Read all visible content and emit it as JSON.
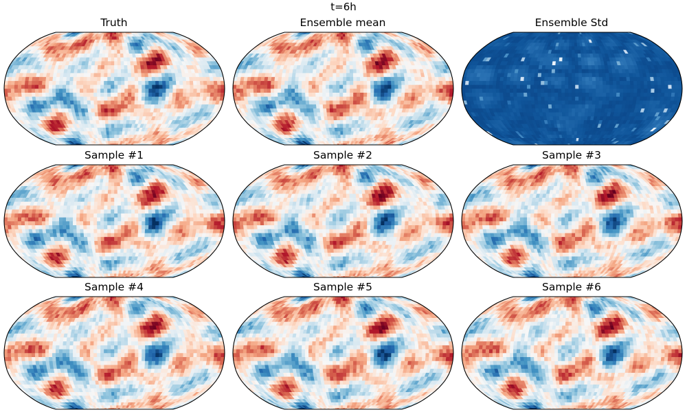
{
  "figure": {
    "suptitle": "t=6h"
  },
  "chart_data": [
    {
      "type": "heatmap",
      "title": "Truth",
      "colormap": "RdBu_r",
      "projection": "robinson",
      "field_seed": 11,
      "noise_seed": 101
    },
    {
      "type": "heatmap",
      "title": "Ensemble mean",
      "colormap": "RdBu_r",
      "projection": "robinson",
      "field_seed": 11,
      "noise_seed": 202
    },
    {
      "type": "heatmap",
      "title": "Ensemble Std",
      "colormap": "Blues",
      "projection": "robinson",
      "field_seed": 77,
      "noise_seed": 303
    },
    {
      "type": "heatmap",
      "title": "Sample #1",
      "colormap": "RdBu_r",
      "projection": "robinson",
      "field_seed": 11,
      "noise_seed": 404
    },
    {
      "type": "heatmap",
      "title": "Sample #2",
      "colormap": "RdBu_r",
      "projection": "robinson",
      "field_seed": 11,
      "noise_seed": 505
    },
    {
      "type": "heatmap",
      "title": "Sample #3",
      "colormap": "RdBu_r",
      "projection": "robinson",
      "field_seed": 11,
      "noise_seed": 606
    },
    {
      "type": "heatmap",
      "title": "Sample #4",
      "colormap": "RdBu_r",
      "projection": "robinson",
      "field_seed": 11,
      "noise_seed": 707
    },
    {
      "type": "heatmap",
      "title": "Sample #5",
      "colormap": "RdBu_r",
      "projection": "robinson",
      "field_seed": 11,
      "noise_seed": 808
    },
    {
      "type": "heatmap",
      "title": "Sample #6",
      "colormap": "RdBu_r",
      "projection": "robinson",
      "field_seed": 11,
      "noise_seed": 909
    }
  ]
}
